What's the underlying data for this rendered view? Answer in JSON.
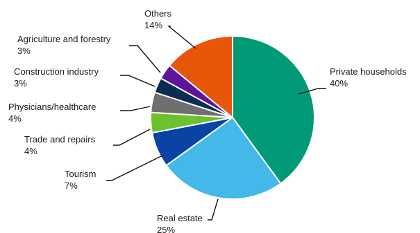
{
  "chart_data": {
    "type": "pie",
    "title": "",
    "start_angle_deg": 0,
    "direction": "clockwise",
    "slices": [
      {
        "label": "Private households",
        "value": 40,
        "value_label": "40%",
        "color": "#009a77"
      },
      {
        "label": "Real estate",
        "value": 25,
        "value_label": "25%",
        "color": "#44b8e8"
      },
      {
        "label": "Tourism",
        "value": 7,
        "value_label": "7%",
        "color": "#0a43a6"
      },
      {
        "label": "Trade and repairs",
        "value": 4,
        "value_label": "4%",
        "color": "#6cc12d"
      },
      {
        "label": "Physicians/healthcare",
        "value": 4,
        "value_label": "4%",
        "color": "#6f6f6f"
      },
      {
        "label": "Construction industry",
        "value": 3,
        "value_label": "3%",
        "color": "#0a2d53"
      },
      {
        "label": "Agriculture and forestry",
        "value": 3,
        "value_label": "3%",
        "color": "#5f1599"
      },
      {
        "label": "Others",
        "value": 14,
        "value_label": "14%",
        "color": "#e8560a"
      }
    ]
  }
}
